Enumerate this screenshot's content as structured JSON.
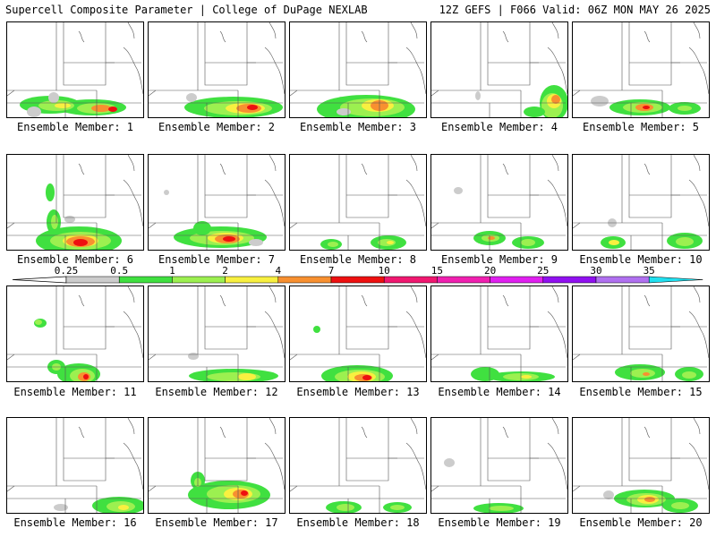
{
  "header": {
    "left": "Supercell Composite Parameter | College of DuPage NEXLAB",
    "right": "12Z GEFS | F066 Valid: 06Z MON MAY 26 2025"
  },
  "member_prefix": "Ensemble Member: ",
  "members": [
    {
      "n": "1",
      "blobs": [
        [
          48,
          92,
          34,
          10,
          "g"
        ],
        [
          95,
          95,
          38,
          9,
          "g"
        ],
        [
          55,
          93,
          20,
          6,
          "l"
        ],
        [
          100,
          96,
          22,
          6,
          "l"
        ],
        [
          62,
          93,
          9,
          3,
          "y"
        ],
        [
          105,
          96,
          11,
          4,
          "o"
        ],
        [
          118,
          97,
          5,
          3,
          "r"
        ],
        [
          30,
          100,
          8,
          6,
          "s"
        ],
        [
          52,
          84,
          6,
          6,
          "s"
        ]
      ]
    },
    {
      "n": "2",
      "blobs": [
        [
          95,
          95,
          55,
          12,
          "g"
        ],
        [
          100,
          96,
          38,
          8,
          "l"
        ],
        [
          108,
          96,
          22,
          6,
          "y"
        ],
        [
          112,
          96,
          14,
          5,
          "o"
        ],
        [
          116,
          95,
          6,
          3,
          "r"
        ],
        [
          48,
          84,
          6,
          5,
          "s"
        ]
      ]
    },
    {
      "n": "3",
      "blobs": [
        [
          85,
          97,
          55,
          16,
          "g"
        ],
        [
          92,
          95,
          36,
          10,
          "l"
        ],
        [
          98,
          93,
          18,
          7,
          "y"
        ],
        [
          100,
          93,
          10,
          6,
          "o"
        ],
        [
          60,
          100,
          8,
          4,
          "s"
        ]
      ]
    },
    {
      "n": "4",
      "blobs": [
        [
          137,
          90,
          16,
          20,
          "g"
        ],
        [
          135,
          93,
          12,
          14,
          "l"
        ],
        [
          137,
          88,
          8,
          8,
          "y"
        ],
        [
          139,
          86,
          5,
          5,
          "o"
        ],
        [
          115,
          100,
          12,
          6,
          "g"
        ],
        [
          52,
          82,
          3,
          5,
          "s"
        ]
      ]
    },
    {
      "n": "5",
      "blobs": [
        [
          75,
          95,
          34,
          9,
          "g"
        ],
        [
          78,
          95,
          22,
          6,
          "l"
        ],
        [
          80,
          95,
          10,
          4,
          "o"
        ],
        [
          82,
          95,
          4,
          2,
          "r"
        ],
        [
          125,
          96,
          18,
          7,
          "g"
        ],
        [
          125,
          96,
          8,
          3,
          "l"
        ],
        [
          30,
          88,
          10,
          6,
          "s"
        ]
      ]
    },
    {
      "n": "6",
      "blobs": [
        [
          80,
          96,
          48,
          16,
          "g"
        ],
        [
          82,
          96,
          34,
          10,
          "l"
        ],
        [
          82,
          96,
          20,
          7,
          "y"
        ],
        [
          82,
          97,
          16,
          6,
          "o"
        ],
        [
          82,
          98,
          8,
          4,
          "r"
        ],
        [
          52,
          75,
          8,
          14,
          "g"
        ],
        [
          53,
          75,
          4,
          8,
          "l"
        ],
        [
          48,
          42,
          5,
          10,
          "g"
        ],
        [
          70,
          72,
          6,
          4,
          "s"
        ]
      ]
    },
    {
      "n": "7",
      "blobs": [
        [
          80,
          92,
          52,
          12,
          "g"
        ],
        [
          82,
          93,
          36,
          8,
          "l"
        ],
        [
          86,
          93,
          20,
          6,
          "y"
        ],
        [
          88,
          94,
          14,
          5,
          "o"
        ],
        [
          90,
          94,
          7,
          3,
          "r"
        ],
        [
          60,
          82,
          10,
          8,
          "g"
        ],
        [
          120,
          98,
          8,
          4,
          "s"
        ],
        [
          20,
          42,
          3,
          3,
          "s"
        ]
      ]
    },
    {
      "n": "8",
      "blobs": [
        [
          46,
          100,
          12,
          6,
          "g"
        ],
        [
          48,
          100,
          6,
          3,
          "l"
        ],
        [
          110,
          98,
          20,
          8,
          "g"
        ],
        [
          108,
          98,
          10,
          4,
          "l"
        ],
        [
          112,
          98,
          4,
          2,
          "y"
        ]
      ]
    },
    {
      "n": "9",
      "blobs": [
        [
          65,
          93,
          18,
          8,
          "g"
        ],
        [
          66,
          93,
          10,
          4,
          "l"
        ],
        [
          67,
          93,
          4,
          2,
          "o"
        ],
        [
          108,
          98,
          18,
          7,
          "g"
        ],
        [
          108,
          98,
          8,
          4,
          "l"
        ],
        [
          30,
          40,
          5,
          4,
          "s"
        ]
      ]
    },
    {
      "n": "10",
      "blobs": [
        [
          45,
          98,
          14,
          7,
          "g"
        ],
        [
          46,
          98,
          6,
          3,
          "y"
        ],
        [
          125,
          96,
          20,
          9,
          "g"
        ],
        [
          125,
          97,
          10,
          5,
          "l"
        ],
        [
          44,
          76,
          5,
          5,
          "s"
        ]
      ]
    },
    {
      "n": "11",
      "blobs": [
        [
          80,
          98,
          24,
          12,
          "g"
        ],
        [
          84,
          100,
          14,
          8,
          "l"
        ],
        [
          86,
          101,
          7,
          5,
          "o"
        ],
        [
          88,
          101,
          3,
          3,
          "r"
        ],
        [
          55,
          90,
          10,
          8,
          "g"
        ],
        [
          55,
          90,
          5,
          4,
          "l"
        ],
        [
          37,
          41,
          7,
          5,
          "g"
        ],
        [
          35,
          40,
          4,
          3,
          "l"
        ]
      ]
    },
    {
      "n": "12",
      "blobs": [
        [
          95,
          100,
          50,
          8,
          "g"
        ],
        [
          95,
          101,
          30,
          5,
          "l"
        ],
        [
          110,
          101,
          10,
          4,
          "y"
        ],
        [
          50,
          78,
          6,
          4,
          "s"
        ]
      ]
    },
    {
      "n": "13",
      "blobs": [
        [
          75,
          100,
          40,
          12,
          "g"
        ],
        [
          78,
          101,
          28,
          8,
          "l"
        ],
        [
          80,
          101,
          16,
          6,
          "y"
        ],
        [
          82,
          102,
          10,
          4,
          "o"
        ],
        [
          86,
          102,
          5,
          3,
          "r"
        ],
        [
          30,
          48,
          4,
          4,
          "g"
        ]
      ]
    },
    {
      "n": "14",
      "blobs": [
        [
          60,
          98,
          16,
          8,
          "g"
        ],
        [
          100,
          101,
          38,
          6,
          "g"
        ],
        [
          100,
          101,
          20,
          4,
          "l"
        ],
        [
          106,
          101,
          6,
          2,
          "y"
        ]
      ]
    },
    {
      "n": "15",
      "blobs": [
        [
          75,
          96,
          28,
          9,
          "g"
        ],
        [
          78,
          97,
          14,
          5,
          "l"
        ],
        [
          130,
          98,
          16,
          8,
          "g"
        ],
        [
          130,
          99,
          8,
          4,
          "l"
        ],
        [
          82,
          98,
          4,
          2,
          "o"
        ]
      ]
    },
    {
      "n": "16",
      "blobs": [
        [
          125,
          98,
          30,
          10,
          "g"
        ],
        [
          127,
          99,
          16,
          6,
          "l"
        ],
        [
          130,
          100,
          6,
          3,
          "y"
        ],
        [
          60,
          100,
          8,
          4,
          "s"
        ]
      ]
    },
    {
      "n": "17",
      "blobs": [
        [
          90,
          86,
          46,
          16,
          "g"
        ],
        [
          95,
          85,
          30,
          10,
          "l"
        ],
        [
          100,
          85,
          16,
          7,
          "y"
        ],
        [
          103,
          85,
          9,
          5,
          "o"
        ],
        [
          107,
          84,
          4,
          3,
          "r"
        ],
        [
          55,
          70,
          8,
          10,
          "g"
        ],
        [
          55,
          72,
          4,
          5,
          "l"
        ]
      ]
    },
    {
      "n": "18",
      "blobs": [
        [
          60,
          100,
          20,
          7,
          "g"
        ],
        [
          62,
          100,
          10,
          4,
          "l"
        ],
        [
          120,
          100,
          16,
          6,
          "g"
        ],
        [
          120,
          100,
          8,
          3,
          "l"
        ]
      ]
    },
    {
      "n": "19",
      "blobs": [
        [
          75,
          101,
          28,
          6,
          "g"
        ],
        [
          78,
          101,
          14,
          3,
          "l"
        ],
        [
          20,
          50,
          6,
          5,
          "s"
        ]
      ]
    },
    {
      "n": "20",
      "blobs": [
        [
          80,
          90,
          34,
          10,
          "g"
        ],
        [
          82,
          91,
          22,
          7,
          "l"
        ],
        [
          84,
          91,
          12,
          5,
          "y"
        ],
        [
          86,
          91,
          6,
          3,
          "o"
        ],
        [
          120,
          98,
          20,
          8,
          "g"
        ],
        [
          120,
          98,
          10,
          4,
          "l"
        ],
        [
          40,
          86,
          6,
          5,
          "s"
        ]
      ]
    }
  ],
  "legend": {
    "labels": [
      "0.25",
      "0.5",
      "1",
      "2",
      "4",
      "7",
      "10",
      "15",
      "20",
      "25",
      "30",
      "35"
    ],
    "colors": [
      "#cccccc",
      "#40e040",
      "#9cf050",
      "#f8f040",
      "#f89030",
      "#ee1010",
      "#f01870",
      "#f020b0",
      "#e020f0",
      "#9010f0",
      "#b070f0",
      "#20e0f0"
    ]
  },
  "colors": {
    "s": "#cccccc",
    "g": "#40e040",
    "l": "#9cf050",
    "y": "#f8f040",
    "o": "#f89030",
    "r": "#ee1010"
  }
}
